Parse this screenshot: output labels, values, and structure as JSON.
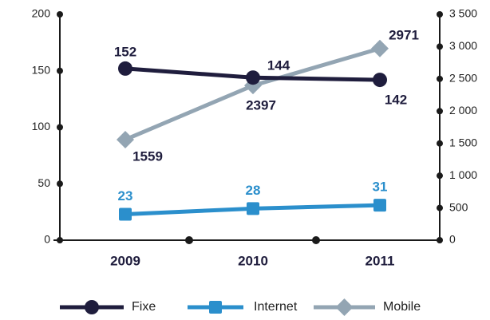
{
  "chart_data": {
    "type": "line",
    "categories": [
      "2009",
      "2010",
      "2011"
    ],
    "ylim": [
      0,
      200
    ],
    "yticks": [
      0,
      50,
      100,
      150,
      200
    ],
    "y2lim": [
      0,
      3500
    ],
    "y2ticks": [
      0,
      500,
      {
        "value": 1000,
        "label": "1 000"
      },
      {
        "value": 1500,
        "label": "1 500"
      },
      {
        "value": 2000,
        "label": "2 000"
      },
      {
        "value": 2500,
        "label": "2 500"
      },
      {
        "value": 3000,
        "label": "3 000"
      },
      {
        "value": 3500,
        "label": "3 500"
      }
    ],
    "grid": false,
    "legend": "bottom",
    "series": [
      {
        "name": "Fixe",
        "color": "#1f1d3d",
        "marker": "circle",
        "values": [
          152,
          144,
          142
        ]
      },
      {
        "name": "Internet",
        "color": "#2b8fcc",
        "marker": "square",
        "values": [
          23,
          28,
          31
        ]
      },
      {
        "name": "Mobile",
        "color": "#93a5b3",
        "marker": "diamond",
        "axis": "y2",
        "values": [
          1559,
          2397,
          2971
        ]
      }
    ]
  }
}
